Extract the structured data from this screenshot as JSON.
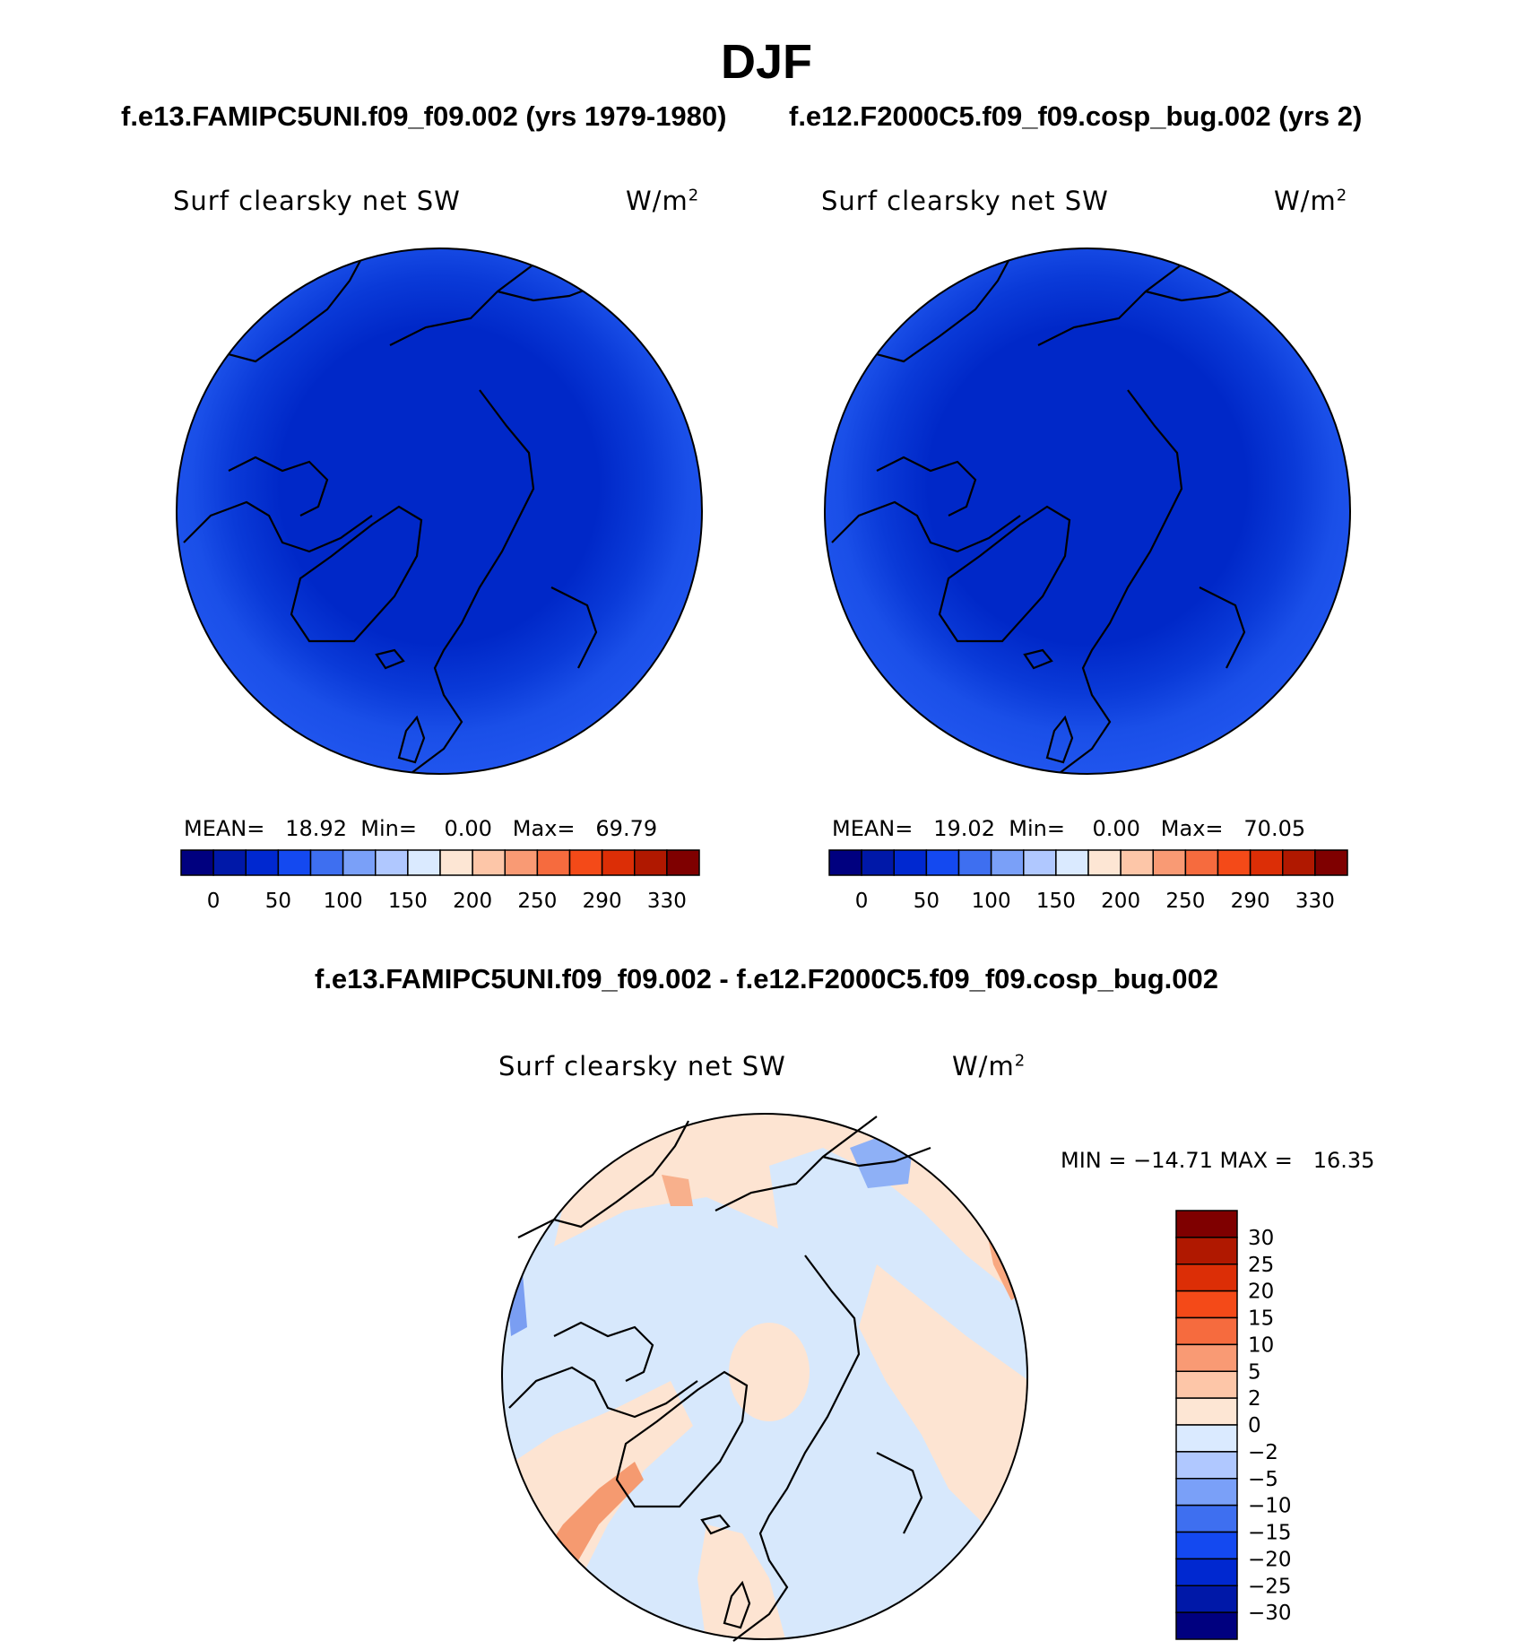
{
  "page": {
    "season": "DJF",
    "case1_header": "f.e13.FAMIPC5UNI.f09_f09.002 (yrs 1979-1980)",
    "case2_header": "f.e12.F2000C5.f09_f09.cosp_bug.002 (yrs 2)",
    "diff_header": "f.e13.FAMIPC5UNI.f09_f09.002 - f.e12.F2000C5.f09_f09.cosp_bug.002"
  },
  "panels": [
    {
      "variable": "Surf clearsky net SW",
      "units": "W/m",
      "units_exp": "2",
      "stats_mean_label": "MEAN=",
      "stats_mean": "18.92",
      "stats_min_label": "Min=",
      "stats_min": "0.00",
      "stats_max_label": "Max=",
      "stats_max": "69.79"
    },
    {
      "variable": "Surf clearsky net SW",
      "units": "W/m",
      "units_exp": "2",
      "stats_mean_label": "MEAN=",
      "stats_mean": "19.02",
      "stats_min_label": "Min=",
      "stats_min": "0.00",
      "stats_max_label": "Max=",
      "stats_max": "70.05"
    }
  ],
  "diff_panel": {
    "variable": "Surf clearsky net SW",
    "units": "W/m",
    "units_exp": "2",
    "stats": "MIN = −14.71 MAX =   16.35"
  },
  "colorbar_top": {
    "colors": [
      "#00007f",
      "#0018a8",
      "#0028d0",
      "#1449f0",
      "#3e6ff0",
      "#7aa0f8",
      "#b0c8ff",
      "#daeaff",
      "#fde6d4",
      "#fdc6a8",
      "#f99a74",
      "#f66b3e",
      "#f44a18",
      "#dc2e06",
      "#b01800",
      "#7f0000"
    ],
    "tick_labels": [
      "0",
      "50",
      "100",
      "150",
      "200",
      "250",
      "290",
      "330"
    ]
  },
  "colorbar_diff": {
    "colors": [
      "#7f0000",
      "#b01800",
      "#dc2e06",
      "#f44a18",
      "#f66b3e",
      "#f99a74",
      "#fdc6a8",
      "#fde6d4",
      "#daeaff",
      "#b0c8ff",
      "#7aa0f8",
      "#3e6ff0",
      "#1449f0",
      "#0028d0",
      "#0018a8",
      "#00007f"
    ],
    "tick_labels": [
      "30",
      "25",
      "20",
      "15",
      "10",
      "5",
      "2",
      "0",
      "−2",
      "−5",
      "−10",
      "−15",
      "−20",
      "−25",
      "−30"
    ]
  }
}
